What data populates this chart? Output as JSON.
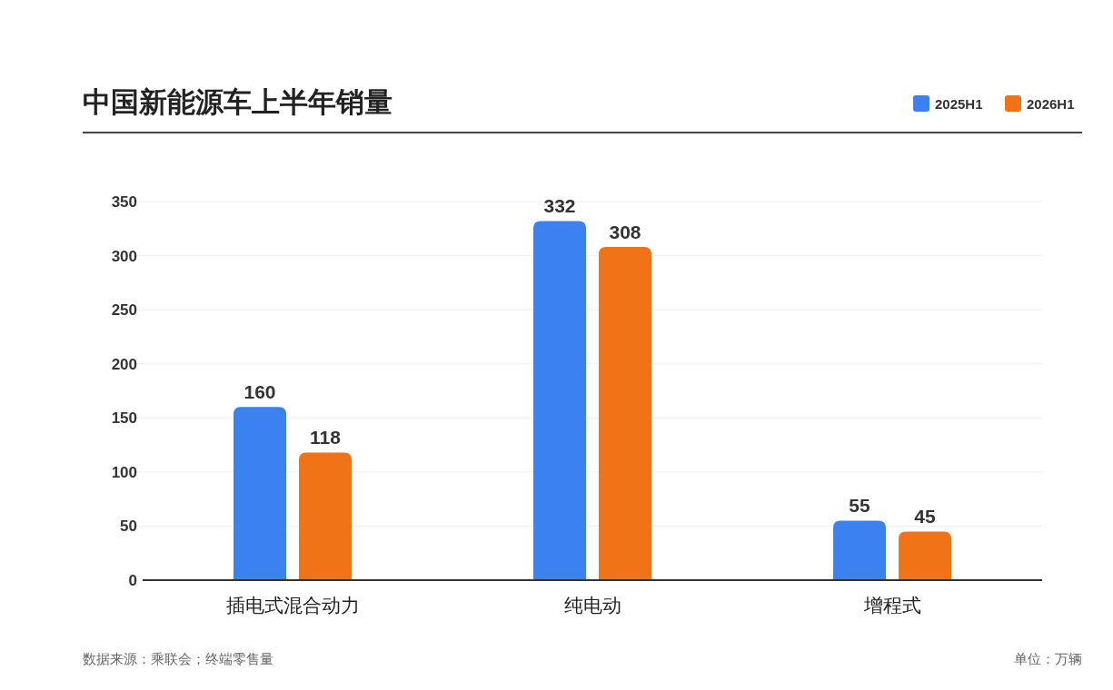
{
  "chart_data": {
    "type": "bar",
    "title": "中国新能源车上半年销量",
    "categories": [
      "插电式混合动力",
      "纯电动",
      "增程式"
    ],
    "series": [
      {
        "name": "2025H1",
        "color": "#3b82f0",
        "values": [
          160,
          332,
          55
        ]
      },
      {
        "name": "2026H1",
        "color": "#f07318",
        "values": [
          118,
          308,
          45
        ]
      }
    ],
    "ylim": [
      0,
      350
    ],
    "yticks": [
      0,
      50,
      100,
      150,
      200,
      250,
      300,
      350
    ],
    "grid": "y",
    "legend": "top right",
    "data_labels": true,
    "annotations": [
      "数据来源：乘联会；终端零售量",
      "单位：万辆"
    ]
  }
}
